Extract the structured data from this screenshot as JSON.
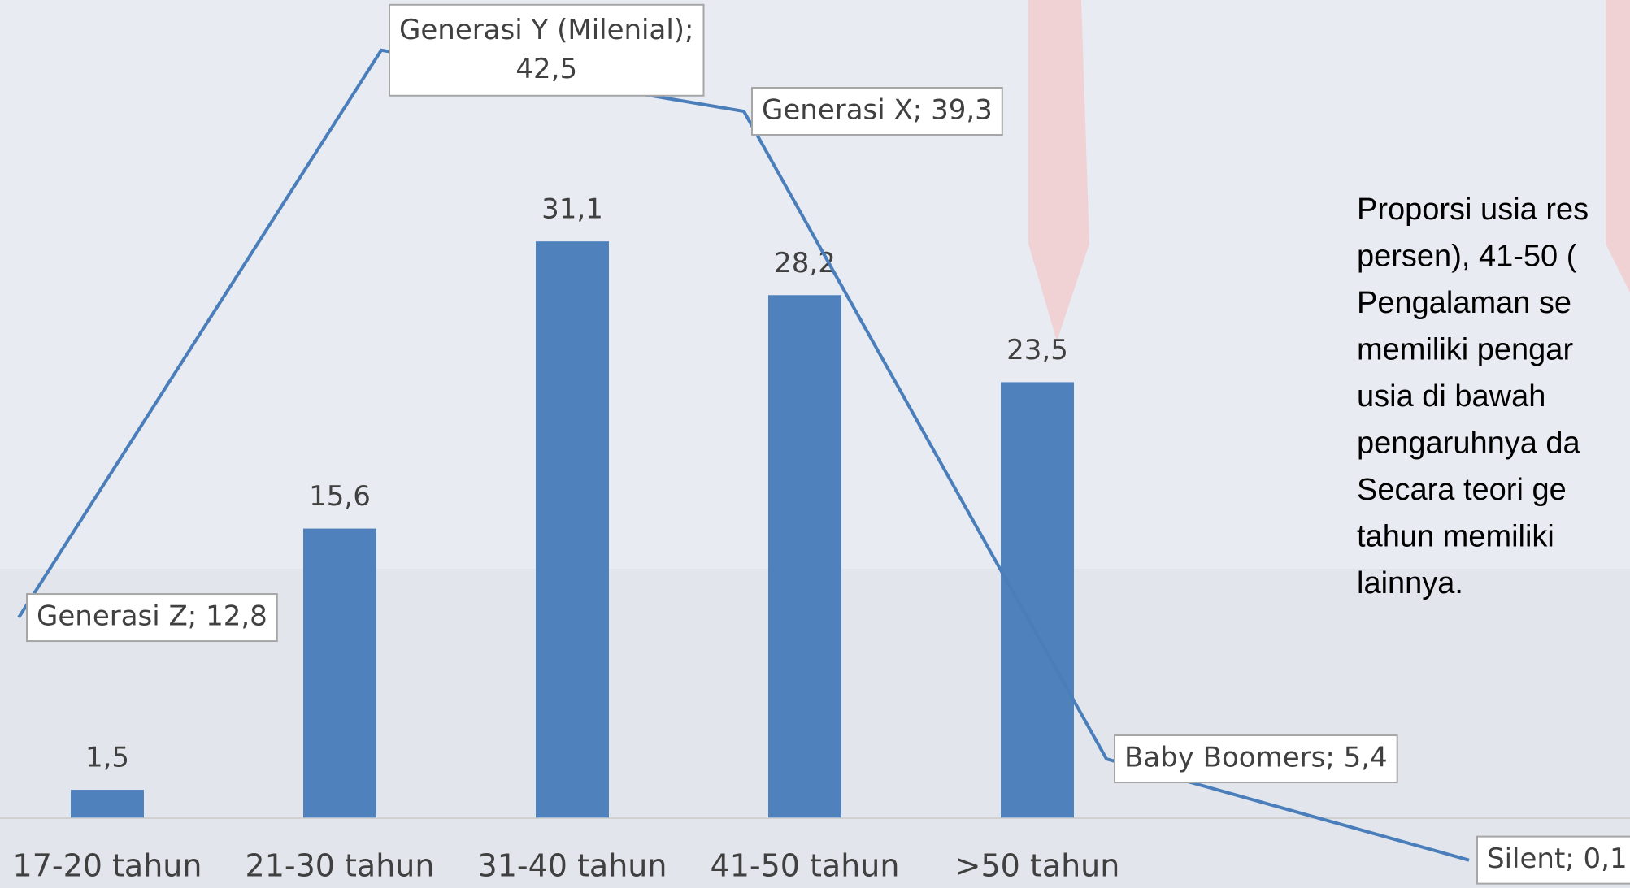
{
  "chart_data": {
    "type": "bar",
    "categories": [
      "17-20 tahun",
      "21-30 tahun",
      "31-40 tahun",
      "41-50 tahun",
      ">50 tahun"
    ],
    "values": [
      1.5,
      15.6,
      31.1,
      28.2,
      23.5
    ],
    "value_labels": [
      "1,5",
      "15,6",
      "31,1",
      "28,2",
      "23,5"
    ],
    "color": "#4f81bd",
    "ylim": [
      -2.4,
      44
    ],
    "y2lim": [
      0,
      45
    ],
    "series": [
      {
        "type": "line",
        "axis": "y2",
        "color": "#4a7ebb",
        "values": [
          12.8,
          42.5,
          39.3,
          5.4,
          0.1
        ],
        "value_labels": [
          "Generasi Z; 12,8",
          "Generasi Y (Milenial); 42,5",
          "Generasi X; 39,3",
          "Baby Boomers; 5,4",
          "Silent; 0,1"
        ]
      }
    ],
    "note_lines": [
      "Proporsi usia res",
      "persen), 41-50 (",
      "Pengalaman se",
      "memiliki pengar",
      "usia di bawah",
      "pengaruhnya da",
      "Secara teori ge",
      "tahun memiliki",
      "lainnya."
    ]
  }
}
